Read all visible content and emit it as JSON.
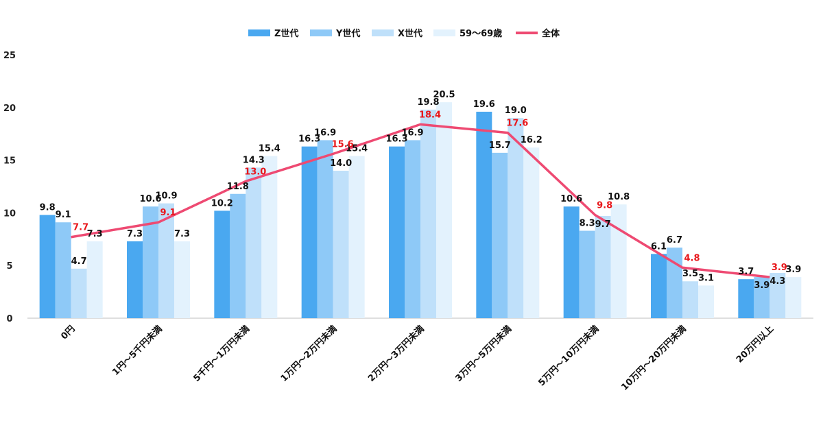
{
  "chart_data": {
    "type": "bar",
    "title": "",
    "xlabel": "",
    "ylabel": "",
    "ylim": [
      0,
      25
    ],
    "yticks": [
      0,
      5,
      10,
      15,
      20,
      25
    ],
    "categories": [
      "0円",
      "1円～5千円未満",
      "5千円～1万円未満",
      "1万円～2万円未満",
      "2万円～3万円未満",
      "3万円～5万円未満",
      "5万円～10万円未満",
      "10万円～20万円未満",
      "20万円以上"
    ],
    "series": [
      {
        "name": "Z世代",
        "values": [
          9.8,
          7.3,
          10.2,
          16.3,
          16.3,
          19.6,
          10.6,
          6.1,
          3.7
        ],
        "color": "#4aa8f0"
      },
      {
        "name": "Y世代",
        "values": [
          9.1,
          10.6,
          11.8,
          16.9,
          16.9,
          15.7,
          8.3,
          6.7,
          3.9
        ],
        "color": "#8ec9f7"
      },
      {
        "name": "X世代",
        "values": [
          4.7,
          10.9,
          14.3,
          14.0,
          19.8,
          19.0,
          9.7,
          3.5,
          4.3
        ],
        "color": "#bfe0fa"
      },
      {
        "name": "59～69歳",
        "values": [
          7.3,
          7.3,
          15.4,
          15.4,
          20.5,
          16.2,
          10.8,
          3.1,
          3.9
        ],
        "color": "#e3f2fd"
      }
    ],
    "line_series": {
      "name": "全体",
      "values": [
        7.7,
        9.1,
        13.0,
        15.6,
        18.4,
        17.6,
        9.8,
        4.8,
        3.9
      ],
      "color": "#ee4a72",
      "label_color": "#e8171b"
    },
    "legend_position": "top-center",
    "grid": false
  }
}
